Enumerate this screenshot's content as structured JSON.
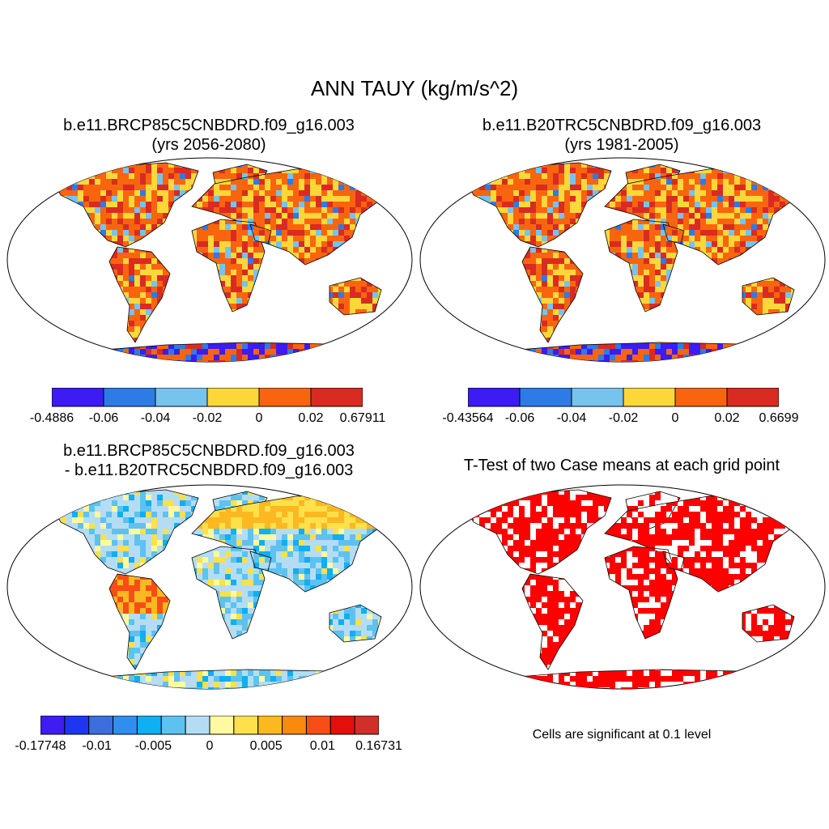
{
  "figure": {
    "title": "ANN TAUY (kg/m/s^2)",
    "panels": [
      {
        "id": "case1",
        "title_line1": "b.e11.BRCP85C5CNBDRD.f09_g16.003",
        "title_line2": "(yrs 2056-2080)",
        "colorbar_labels": [
          "-0.4886",
          "-0.06",
          "-0.04",
          "-0.02",
          "0",
          "0.02",
          "0.67911"
        ],
        "colors": [
          "#3c1cf2",
          "#2d7be6",
          "#76c3ee",
          "#fcd73a",
          "#f9650f",
          "#d92b22"
        ]
      },
      {
        "id": "case2",
        "title_line1": "b.e11.B20TRC5CNBDRD.f09_g16.003",
        "title_line2": "(yrs 1981-2005)",
        "colorbar_labels": [
          "-0.43564",
          "-0.06",
          "-0.04",
          "-0.02",
          "0",
          "0.02",
          "0.6699"
        ],
        "colors": [
          "#3c1cf2",
          "#2d7be6",
          "#76c3ee",
          "#fcd73a",
          "#f9650f",
          "#d92b22"
        ]
      },
      {
        "id": "difference",
        "title_line1": "b.e11.BRCP85C5CNBDRD.f09_g16.003",
        "title_line2": "- b.e11.B20TRC5CNBDRD.f09_g16.003",
        "colorbar_labels": [
          "-0.17748",
          "-0.01",
          "-0.005",
          "0",
          "0.005",
          "0.01",
          "0.16731"
        ],
        "colors": [
          "#3f1cf2",
          "#1e36f0",
          "#3b6fe0",
          "#2f8ef0",
          "#10aef2",
          "#5cc2f0",
          "#b4ddf3",
          "#fff9a0",
          "#fde04a",
          "#fbb820",
          "#f98a0e",
          "#f84d16",
          "#e2110d",
          "#d12f2a"
        ]
      },
      {
        "id": "ttest",
        "title": "T-Test of two Case means at each grid point",
        "note": "Cells are significant at 0.1 level",
        "color": "#ff0000"
      }
    ]
  }
}
